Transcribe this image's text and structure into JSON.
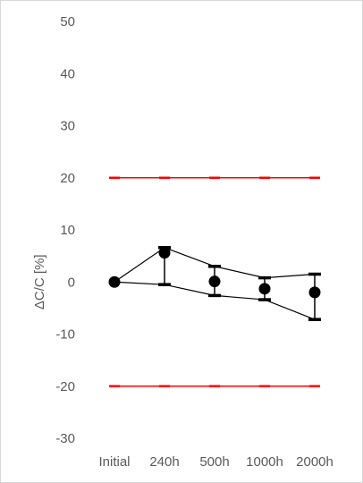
{
  "chart_data": {
    "type": "line",
    "title": "",
    "xlabel": "",
    "ylabel": "ΔC/C [%]",
    "ylim": [
      -30,
      50
    ],
    "yticks": [
      50,
      40,
      30,
      20,
      10,
      0,
      -10,
      -20,
      -30
    ],
    "categories": [
      "Initial",
      "240h",
      "500h",
      "1000h",
      "2000h"
    ],
    "grid": false,
    "legend": "none",
    "series": [
      {
        "role": "mean",
        "values": [
          0,
          5.6,
          0.1,
          -1.3,
          -2.0
        ],
        "color": "#000000"
      },
      {
        "role": "max",
        "values": [
          0,
          6.6,
          3.0,
          0.8,
          1.5
        ],
        "color": "#000000"
      },
      {
        "role": "min",
        "values": [
          0,
          -0.5,
          -2.6,
          -3.4,
          -7.2
        ],
        "color": "#000000"
      },
      {
        "role": "upper-limit",
        "values": [
          20,
          20,
          20,
          20,
          20
        ],
        "color": "#ff0000"
      },
      {
        "role": "lower-limit",
        "values": [
          -20,
          -20,
          -20,
          -20,
          -20
        ],
        "color": "#ff0000"
      }
    ]
  }
}
